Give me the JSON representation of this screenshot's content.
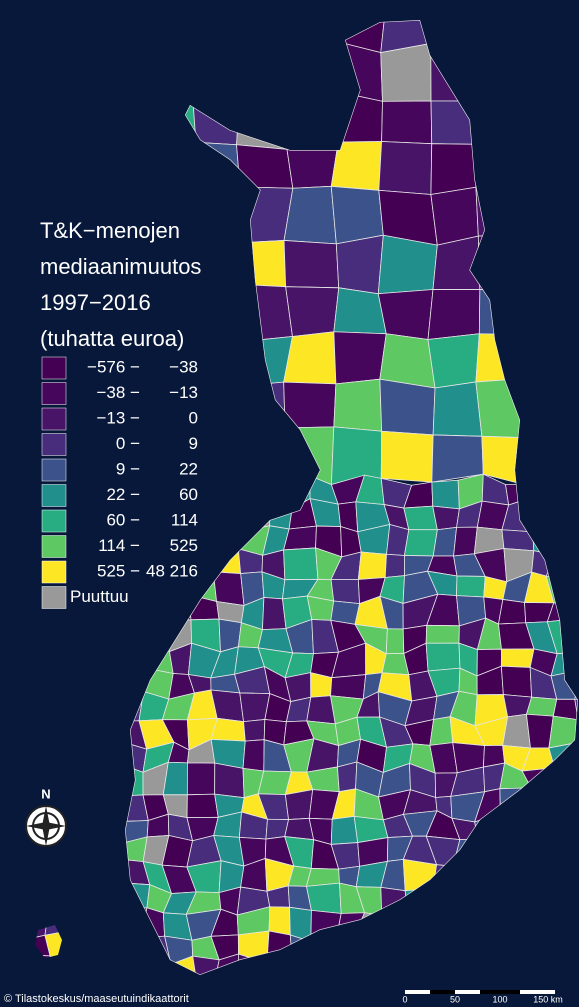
{
  "map": {
    "title_lines": [
      "T&K−menojen",
      "mediaanimuutos",
      "1997−2016",
      "(tuhatta euroa)"
    ],
    "legend": [
      {
        "from": "−576 −",
        "to": "−38",
        "color": "#440154"
      },
      {
        "from": "−38 −",
        "to": "−13",
        "color": "#46065b"
      },
      {
        "from": "−13 −",
        "to": "0",
        "color": "#481467"
      },
      {
        "from": "0 −",
        "to": "9",
        "color": "#472d7b"
      },
      {
        "from": "9 −",
        "to": "22",
        "color": "#3b528b"
      },
      {
        "from": "22 −",
        "to": "60",
        "color": "#21908c"
      },
      {
        "from": "60 −",
        "to": "114",
        "color": "#27ad81"
      },
      {
        "from": "114 −",
        "to": "525",
        "color": "#5ec962"
      },
      {
        "from": "525 −",
        "to": "48 216",
        "color": "#fde725"
      }
    ],
    "missing": {
      "label": "Puuttuu",
      "color": "#999999"
    },
    "north": "N",
    "scale_labels": [
      "0",
      "50",
      "100",
      "150 km"
    ],
    "credit": "© Tilastokeskus/maaseutuindikaattorit"
  }
}
